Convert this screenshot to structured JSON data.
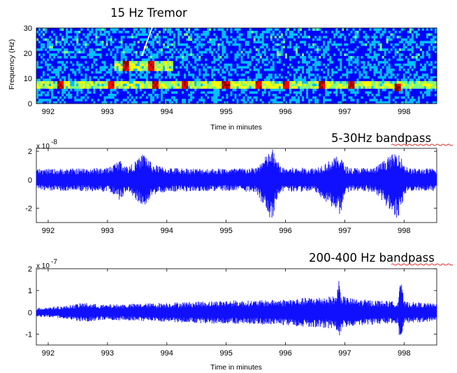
{
  "chart_data": [
    {
      "type": "heatmap",
      "title": "",
      "xlabel": "Time in minutes",
      "ylabel": "Frequency (Hz)",
      "xlim": [
        991.8,
        998.55
      ],
      "ylim": [
        0,
        30
      ],
      "xticks": [
        992,
        993,
        994,
        995,
        996,
        997,
        998
      ],
      "yticks": [
        0,
        10,
        20,
        30
      ],
      "annotation": {
        "text": "15 Hz Tremor",
        "points_to": {
          "x": 993.45,
          "y": 17
        }
      },
      "bands": [
        {
          "frequency_range": [
            6,
            9
          ],
          "level": "high",
          "note": "persistent band across full record"
        },
        {
          "frequency_range": [
            13,
            17
          ],
          "x_range": [
            993.1,
            994.1
          ],
          "level": "high",
          "note": "15 Hz tremor burst"
        }
      ],
      "hotspots": [
        {
          "x": 992.2,
          "y": 7.5,
          "level": "max"
        },
        {
          "x": 993.05,
          "y": 7.5,
          "level": "max"
        },
        {
          "x": 993.8,
          "y": 7.5,
          "level": "max"
        },
        {
          "x": 994.3,
          "y": 7.5,
          "level": "max"
        },
        {
          "x": 995.0,
          "y": 7.5,
          "level": "max"
        },
        {
          "x": 995.55,
          "y": 7.5,
          "level": "max"
        },
        {
          "x": 996.0,
          "y": 7.5,
          "level": "max"
        },
        {
          "x": 996.6,
          "y": 7.5,
          "level": "max"
        },
        {
          "x": 997.1,
          "y": 7.5,
          "level": "max"
        },
        {
          "x": 997.9,
          "y": 6.5,
          "level": "max"
        },
        {
          "x": 993.3,
          "y": 15,
          "level": "max"
        },
        {
          "x": 993.75,
          "y": 15,
          "level": "max"
        }
      ],
      "colormap": [
        "#00008f",
        "#0000ff",
        "#00bfff",
        "#7fff7f",
        "#ffff00",
        "#ff7f00",
        "#ff0000",
        "#8f0000"
      ]
    },
    {
      "type": "line",
      "title": "5-30Hz bandpass",
      "xlabel": "",
      "ylabel": "",
      "y_multiplier": "x 10",
      "y_exponent": "-8",
      "xlim": [
        991.8,
        998.55
      ],
      "ylim": [
        -3,
        2.2
      ],
      "xticks": [
        992,
        993,
        994,
        995,
        996,
        997,
        998
      ],
      "yticks": [
        -2,
        0,
        2
      ],
      "series": [
        {
          "color": "#1010ff",
          "envelope": {
            "x": [
              991.8,
              992.5,
              993.0,
              993.2,
              993.35,
              993.5,
              993.62,
              993.75,
              994.0,
              994.5,
              995.0,
              995.5,
              995.78,
              995.85,
              995.95,
              996.5,
              996.93,
              997.0,
              997.1,
              997.5,
              997.9,
              998.0,
              998.1,
              998.55
            ],
            "upper": [
              0.75,
              0.8,
              0.85,
              1.4,
              0.9,
              1.4,
              1.95,
              1.1,
              0.85,
              0.8,
              0.8,
              0.85,
              2.2,
              1.4,
              0.85,
              0.85,
              1.75,
              1.0,
              0.85,
              0.85,
              2.1,
              1.1,
              0.8,
              0.8
            ],
            "lower": [
              -0.75,
              -0.8,
              -0.85,
              -1.4,
              -0.9,
              -1.5,
              -2.0,
              -1.1,
              -0.85,
              -0.8,
              -0.8,
              -0.85,
              -3.0,
              -1.4,
              -0.85,
              -0.85,
              -2.5,
              -1.0,
              -0.85,
              -0.85,
              -2.8,
              -1.1,
              -0.8,
              -0.8
            ]
          }
        }
      ]
    },
    {
      "type": "line",
      "title": "200-400 Hz bandpass",
      "xlabel": "Time in minutes",
      "ylabel": "",
      "y_multiplier": "x 10",
      "y_exponent": "-7",
      "xlim": [
        991.8,
        998.55
      ],
      "ylim": [
        -1.5,
        2
      ],
      "xticks": [
        992,
        993,
        994,
        995,
        996,
        997,
        998
      ],
      "yticks": [
        -1,
        0,
        1,
        2
      ],
      "series": [
        {
          "color": "#1010ff",
          "envelope": {
            "x": [
              991.8,
              992.3,
              992.6,
              992.9,
              993.5,
              994.0,
              994.5,
              995.0,
              995.5,
              996.0,
              996.5,
              996.85,
              996.9,
              996.95,
              997.2,
              997.6,
              997.9,
              997.93,
              998.0,
              998.3,
              998.55
            ],
            "upper": [
              0.2,
              0.3,
              0.45,
              0.35,
              0.4,
              0.45,
              0.5,
              0.55,
              0.55,
              0.6,
              0.7,
              0.75,
              1.55,
              0.75,
              0.6,
              0.55,
              0.5,
              1.85,
              0.5,
              0.45,
              0.4
            ],
            "lower": [
              -0.2,
              -0.3,
              -0.45,
              -0.35,
              -0.4,
              -0.45,
              -0.5,
              -0.55,
              -0.55,
              -0.6,
              -0.7,
              -0.75,
              -1.35,
              -0.75,
              -0.6,
              -0.55,
              -0.5,
              -1.5,
              -0.5,
              -0.45,
              -0.4
            ]
          }
        }
      ]
    }
  ]
}
